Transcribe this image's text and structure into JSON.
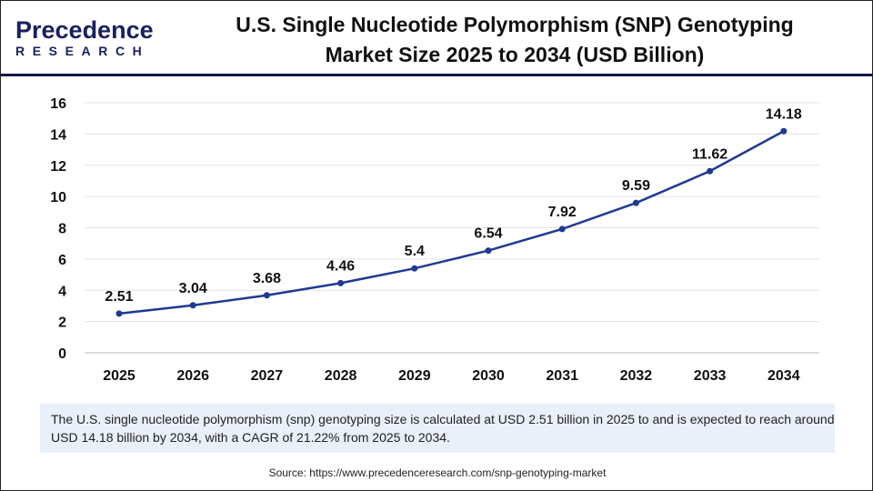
{
  "logo": {
    "line1": "Precedence",
    "line2": "RESEARCH"
  },
  "header": {
    "title_line1": "U.S. Single Nucleotide Polymorphism (SNP) Genotyping",
    "title_line2": "Market Size 2025 to 2034 (USD Billion)"
  },
  "chart_data": {
    "type": "line",
    "title": "U.S. Single Nucleotide Polymorphism (SNP) Genotyping Market Size 2025 to 2034 (USD Billion)",
    "categories": [
      "2025",
      "2026",
      "2027",
      "2028",
      "2029",
      "2030",
      "2031",
      "2032",
      "2033",
      "2034"
    ],
    "values": [
      2.51,
      3.04,
      3.68,
      4.46,
      5.4,
      6.54,
      7.92,
      9.59,
      11.62,
      14.18
    ],
    "data_labels": [
      "2.51",
      "3.04",
      "3.68",
      "4.46",
      "5.4",
      "6.54",
      "7.92",
      "9.59",
      "11.62",
      "14.18"
    ],
    "ylim": [
      0,
      16
    ],
    "yticks": [
      "0",
      "2",
      "4",
      "6",
      "8",
      "10",
      "12",
      "14",
      "16"
    ],
    "grid": true,
    "color": "#1f3a93"
  },
  "note": "The U.S. single nucleotide polymorphism (snp) genotyping size is calculated at USD 2.51 billion in 2025 to and is expected to reach around USD 14.18 billion by 2034, with a CAGR of 21.22% from 2025 to 2034.",
  "source": "Source: https://www.precedenceresearch.com/snp-genotyping-market"
}
